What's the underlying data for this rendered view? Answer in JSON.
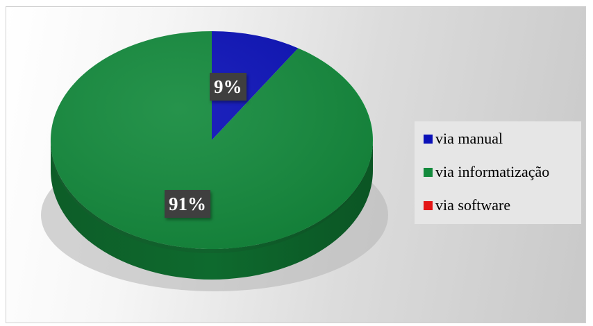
{
  "chart_data": {
    "type": "pie",
    "categories": [
      "via manual",
      "via informatização",
      "via software"
    ],
    "values": [
      9,
      91,
      0
    ],
    "data_labels": [
      "9%",
      "91%",
      ""
    ],
    "title": "",
    "legend_position": "right",
    "colors": [
      "#0a10b8",
      "#138a3c",
      "#e31515"
    ]
  }
}
